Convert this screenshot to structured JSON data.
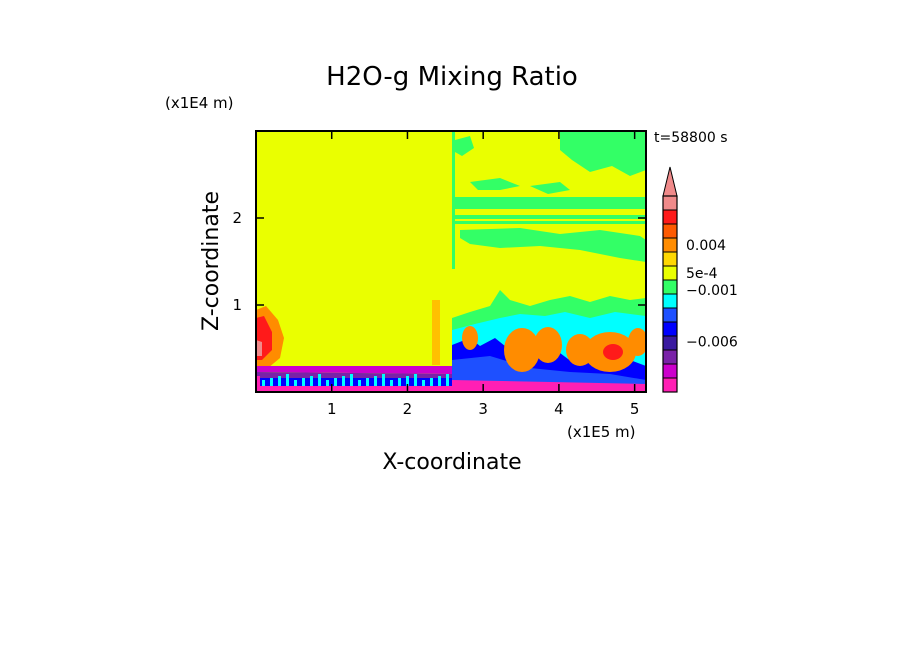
{
  "chart_data": {
    "type": "heatmap",
    "title": "H2O-g Mixing Ratio",
    "xlabel": "X-coordinate",
    "ylabel": "Z-coordinate",
    "x_scale_label": "(x1E5 m)",
    "y_scale_label": "(x1E4 m)",
    "time_label": "t=58800 s",
    "xlim": [
      0,
      5.15
    ],
    "ylim": [
      0,
      3.0
    ],
    "x_ticks": [
      1,
      2,
      3,
      4,
      5
    ],
    "y_ticks": [
      1,
      2
    ],
    "x_tick_labels": [
      "1",
      "2",
      "3",
      "4",
      "5"
    ],
    "y_tick_labels": [
      "1",
      "2"
    ],
    "colorbar": {
      "colors": [
        "#ff1fb4",
        "#cc00cc",
        "#7a22a8",
        "#3a1aa0",
        "#0000ff",
        "#1e50ff",
        "#00ffff",
        "#33ff66",
        "#eaff00",
        "#ffd700",
        "#ff8c00",
        "#ff5a00",
        "#ff1a1a",
        "#f08a8a"
      ],
      "labels": [
        {
          "text": "0.004",
          "level": 10.5
        },
        {
          "text": "5e-4",
          "level": 8.5
        },
        {
          "text": "−0.001",
          "level": 7.3
        },
        {
          "text": "−0.006",
          "level": 3.6
        }
      ],
      "extend": "max"
    },
    "regions": [
      {
        "color": "#eaff00",
        "desc": "background"
      },
      {
        "color": "#33ff66",
        "desc": "upper bands"
      },
      {
        "color": "#00ffff",
        "desc": "mid level"
      },
      {
        "color": "#0000ff",
        "desc": "low level"
      },
      {
        "color": "#ff8c00",
        "desc": "plumes"
      },
      {
        "color": "#ff1fb4",
        "desc": "surface layer"
      }
    ]
  }
}
